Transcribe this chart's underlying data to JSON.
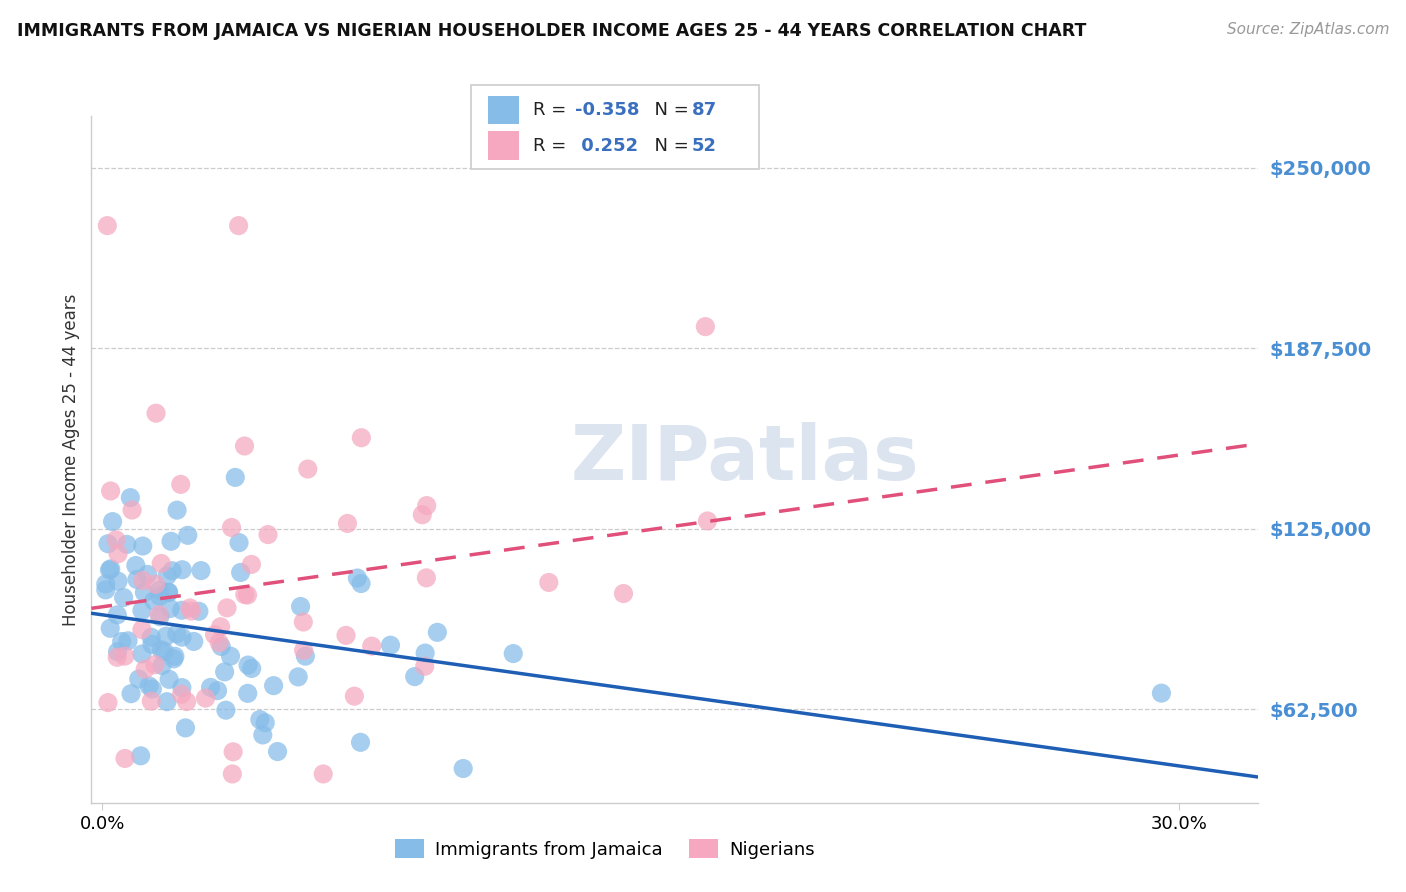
{
  "title": "IMMIGRANTS FROM JAMAICA VS NIGERIAN HOUSEHOLDER INCOME AGES 25 - 44 YEARS CORRELATION CHART",
  "source": "Source: ZipAtlas.com",
  "ylabel": "Householder Income Ages 25 - 44 years",
  "ytick_labels": [
    "$62,500",
    "$125,000",
    "$187,500",
    "$250,000"
  ],
  "ytick_values": [
    62500,
    125000,
    187500,
    250000
  ],
  "ymin": 30000,
  "ymax": 268000,
  "xmin": -0.003,
  "xmax": 0.322,
  "r_jamaica": -0.358,
  "n_jamaica": 87,
  "r_nigerian": 0.252,
  "n_nigerian": 52,
  "color_jamaica": "#85bce8",
  "color_nigerian": "#f5a8c0",
  "color_line_jamaica": "#1e5fb5",
  "color_line_nigerian": "#e0507a",
  "watermark_color": "#dce4f0",
  "background_color": "#ffffff",
  "legend_label1": "Immigrants from Jamaica",
  "legend_label2": "Nigerians"
}
